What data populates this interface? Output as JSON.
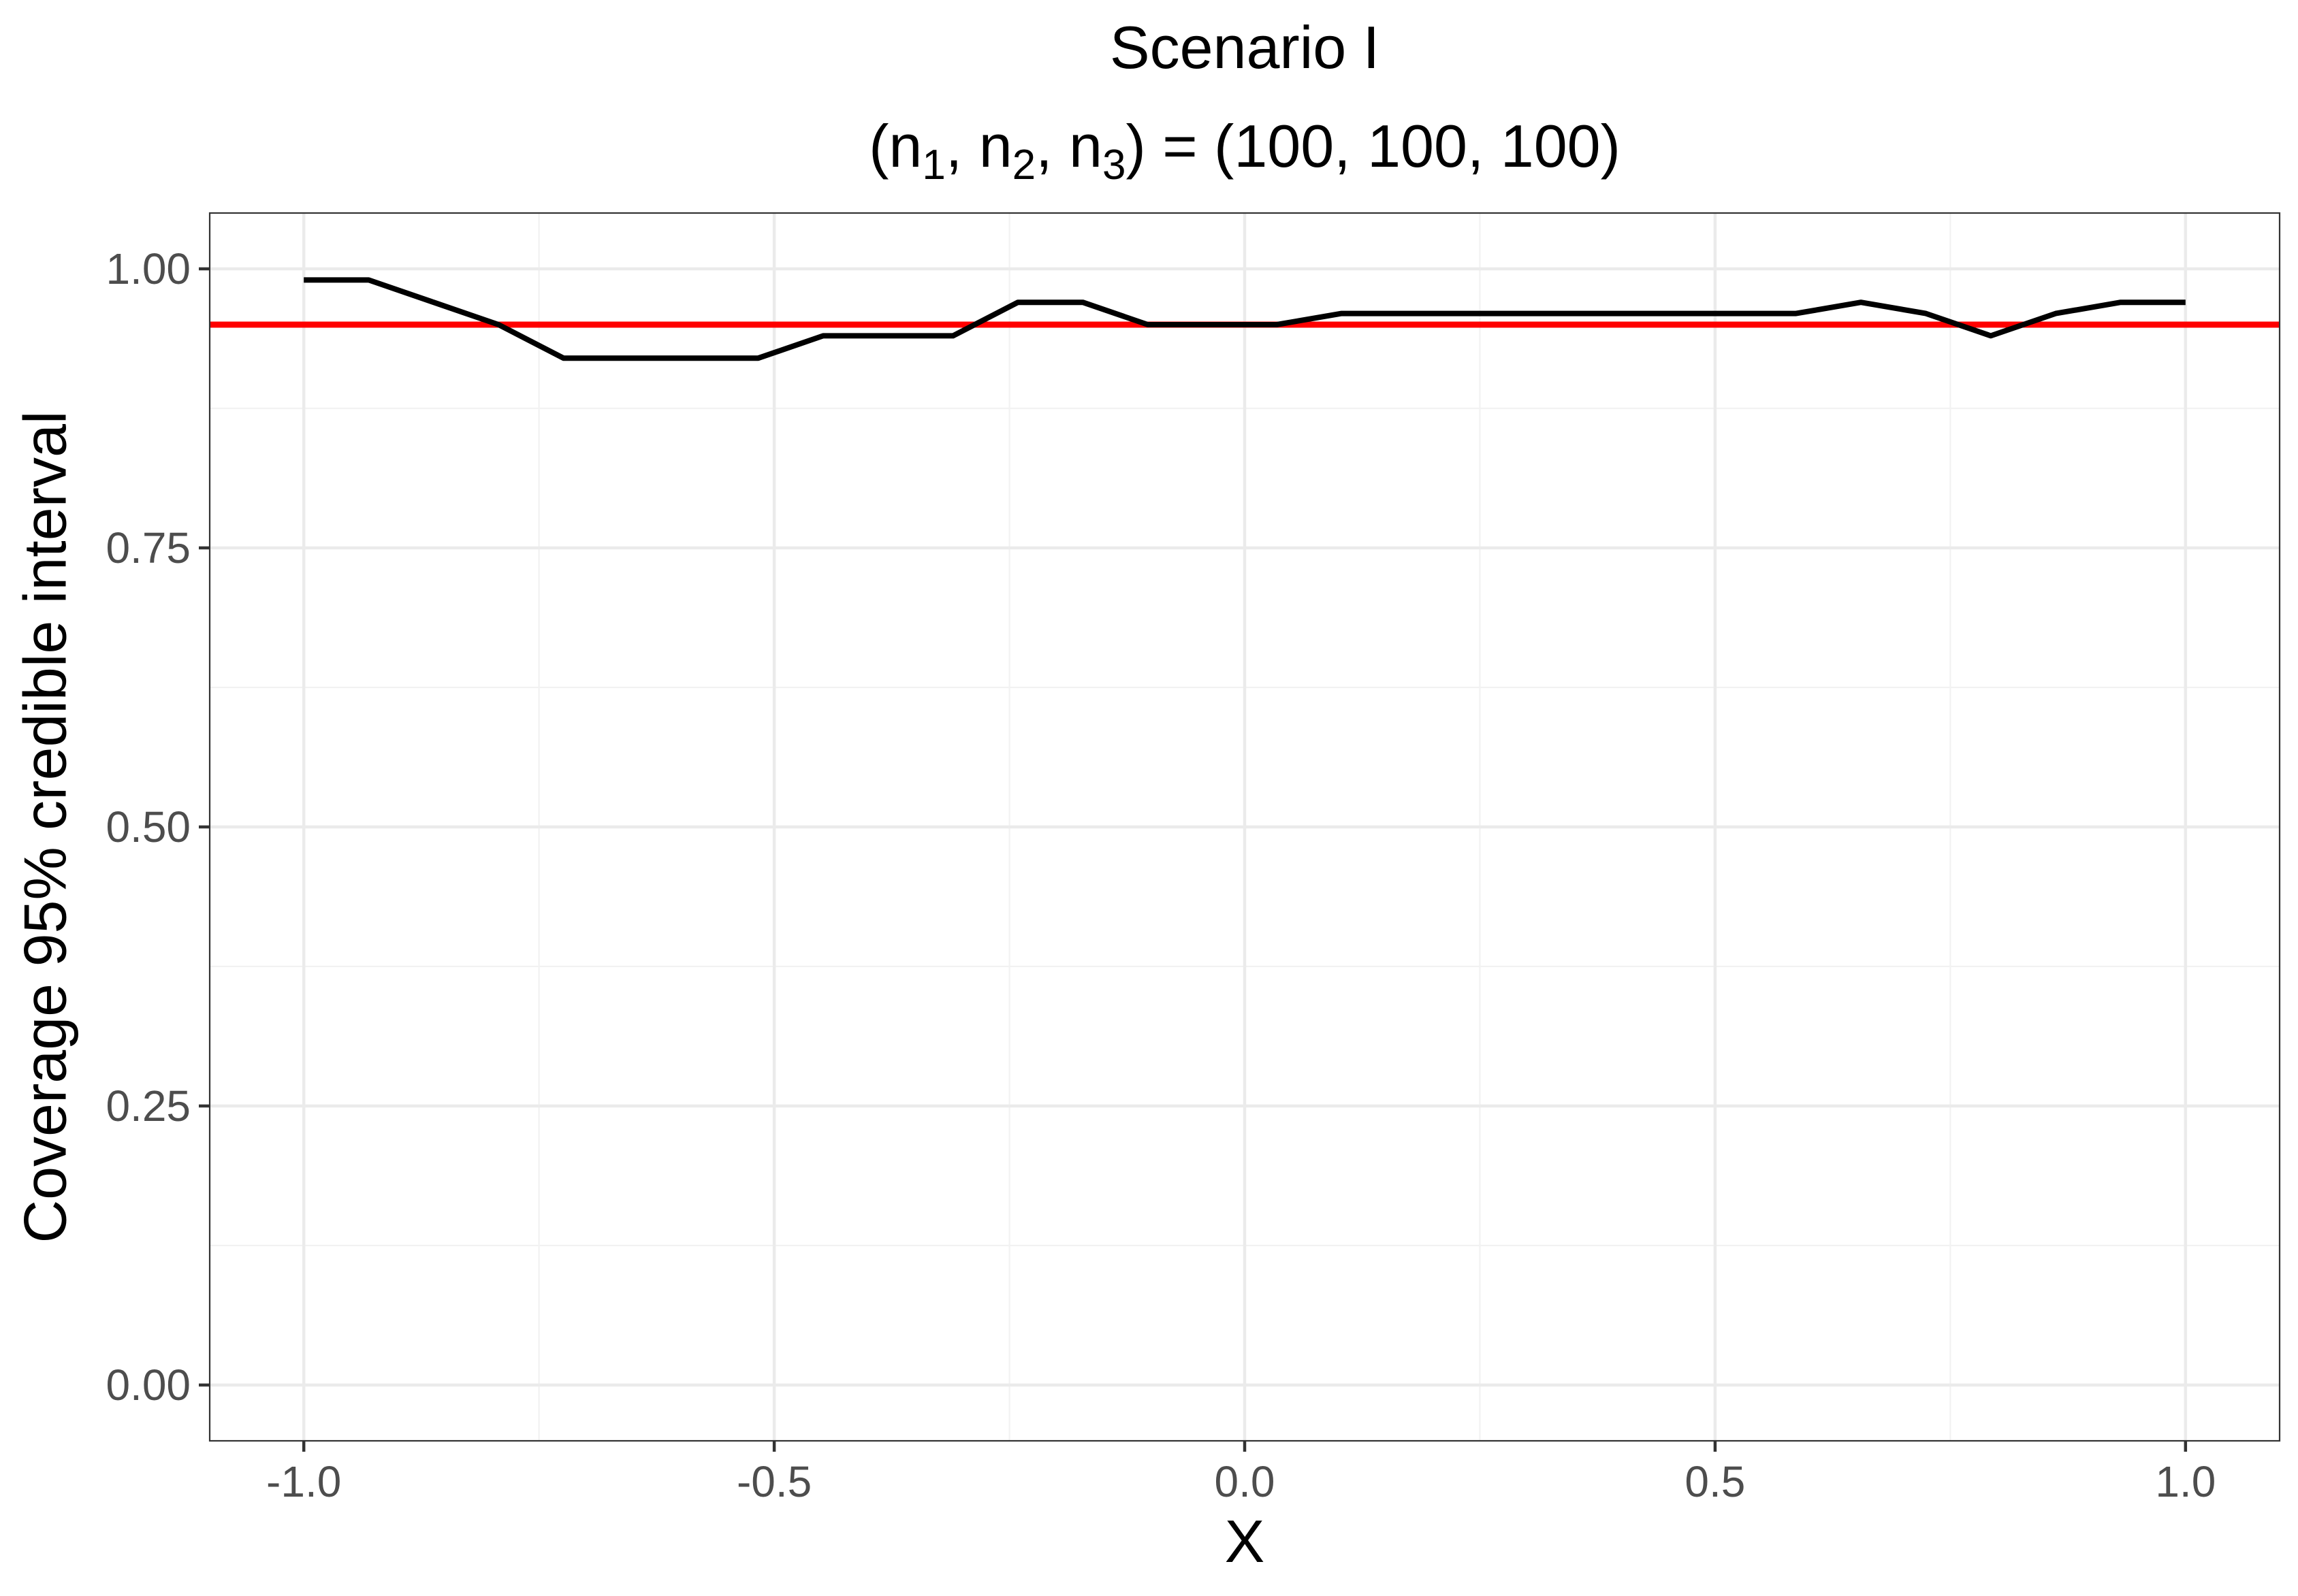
{
  "chart_data": {
    "type": "line",
    "title": "Scenario I",
    "subtitle": {
      "open": "(n",
      "sub1": "1",
      "sep1": ", n",
      "sub2": "2",
      "sep2": ", n",
      "sub3": "3",
      "close": ") = (100, 100, 100)"
    },
    "xlabel": "X",
    "ylabel": "Coverage 95% credible interval",
    "xlim": [
      -1.1,
      1.1
    ],
    "ylim": [
      -0.05,
      1.05
    ],
    "x_ticks": [
      -1.0,
      -0.5,
      0.0,
      0.5,
      1.0
    ],
    "x_tick_labels": [
      "-1.0",
      "-0.5",
      "0.0",
      "0.5",
      "1.0"
    ],
    "y_ticks": [
      0.0,
      0.25,
      0.5,
      0.75,
      1.0
    ],
    "y_tick_labels": [
      "0.00",
      "0.25",
      "0.50",
      "0.75",
      "1.00"
    ],
    "grid": true,
    "series": [
      {
        "color": "#000000",
        "x": [
          -1.0,
          -0.931,
          -0.862,
          -0.793,
          -0.724,
          -0.655,
          -0.586,
          -0.517,
          -0.448,
          -0.379,
          -0.31,
          -0.241,
          -0.172,
          -0.103,
          -0.034,
          0.034,
          0.103,
          0.172,
          0.241,
          0.31,
          0.379,
          0.448,
          0.517,
          0.586,
          0.655,
          0.724,
          0.793,
          0.862,
          0.931,
          1.0
        ],
        "y": [
          0.99,
          0.99,
          0.97,
          0.95,
          0.92,
          0.92,
          0.92,
          0.92,
          0.94,
          0.94,
          0.94,
          0.97,
          0.97,
          0.95,
          0.95,
          0.95,
          0.96,
          0.96,
          0.96,
          0.96,
          0.96,
          0.96,
          0.96,
          0.96,
          0.97,
          0.96,
          0.94,
          0.96,
          0.97,
          0.97
        ]
      }
    ],
    "reference_lines": [
      {
        "axis": "y",
        "value": 0.95,
        "color": "#ff0000"
      }
    ]
  }
}
